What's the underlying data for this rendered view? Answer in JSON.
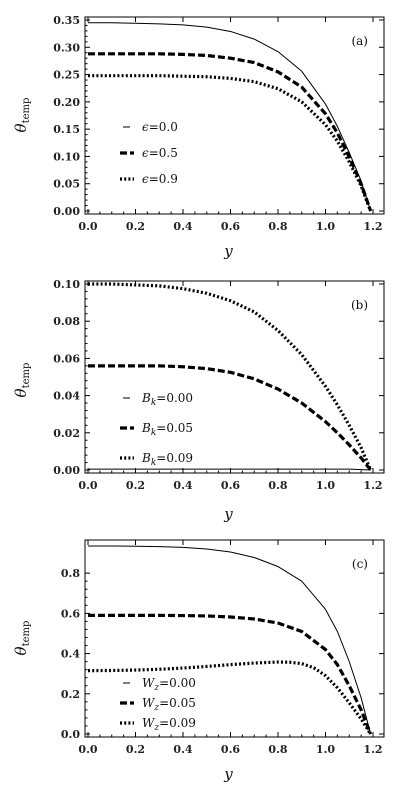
{
  "chart_data": [
    {
      "type": "line",
      "panel_label": "(a)",
      "xlabel": "y",
      "ylabel": "θtemp",
      "xlim": [
        0.0,
        1.2
      ],
      "ylim": [
        0.0,
        0.35
      ],
      "xticks": [
        "0.0",
        "0.2",
        "0.4",
        "0.6",
        "0.8",
        "1.0",
        "1.2"
      ],
      "yticks": [
        "0.00",
        "0.05",
        "0.10",
        "0.15",
        "0.20",
        "0.25",
        "0.30",
        "0.35"
      ],
      "legend_position": "left",
      "series": [
        {
          "name": "ϵ=0.0",
          "legend_var": "ϵ",
          "legend_val": "=0.0",
          "style": "solid",
          "x": [
            0,
            0.1,
            0.2,
            0.3,
            0.4,
            0.5,
            0.6,
            0.7,
            0.8,
            0.9,
            1.0,
            1.05,
            1.1,
            1.15,
            1.19
          ],
          "y": [
            0.345,
            0.345,
            0.344,
            0.343,
            0.341,
            0.337,
            0.329,
            0.315,
            0.292,
            0.256,
            0.196,
            0.155,
            0.107,
            0.055,
            0.0
          ]
        },
        {
          "name": "ϵ=0.5",
          "legend_var": "ϵ",
          "legend_val": "=0.5",
          "style": "dashed",
          "x": [
            0,
            0.1,
            0.2,
            0.3,
            0.4,
            0.5,
            0.6,
            0.7,
            0.8,
            0.9,
            1.0,
            1.05,
            1.1,
            1.15,
            1.19
          ],
          "y": [
            0.288,
            0.288,
            0.288,
            0.288,
            0.287,
            0.285,
            0.28,
            0.272,
            0.255,
            0.227,
            0.178,
            0.143,
            0.099,
            0.05,
            0.0
          ]
        },
        {
          "name": "ϵ=0.9",
          "legend_var": "ϵ",
          "legend_val": "=0.9",
          "style": "dotted",
          "x": [
            0,
            0.1,
            0.2,
            0.3,
            0.4,
            0.5,
            0.6,
            0.7,
            0.8,
            0.9,
            1.0,
            1.05,
            1.1,
            1.15,
            1.19
          ],
          "y": [
            0.248,
            0.248,
            0.248,
            0.248,
            0.247,
            0.246,
            0.243,
            0.237,
            0.224,
            0.2,
            0.158,
            0.128,
            0.09,
            0.046,
            0.0
          ]
        }
      ]
    },
    {
      "type": "line",
      "panel_label": "(b)",
      "xlabel": "y",
      "ylabel": "θtemp",
      "xlim": [
        0.0,
        1.2
      ],
      "ylim": [
        0.0,
        0.1
      ],
      "xticks": [
        "0.0",
        "0.2",
        "0.4",
        "0.6",
        "0.8",
        "1.0",
        "1.2"
      ],
      "yticks": [
        "0.00",
        "0.02",
        "0.04",
        "0.06",
        "0.08",
        "0.10"
      ],
      "legend_position": "bottom-left",
      "series": [
        {
          "name": "Bk=0.00",
          "legend_var": "B",
          "legend_sub": "k",
          "legend_val": "=0.00",
          "style": "solid",
          "x": [
            0,
            0.2,
            0.4,
            0.6,
            0.8,
            1.0,
            1.1,
            1.19
          ],
          "y": [
            0.0005,
            0.0005,
            0.0005,
            0.0005,
            0.0005,
            0.0005,
            0.0005,
            0.0
          ]
        },
        {
          "name": "Bk=0.05",
          "legend_var": "B",
          "legend_sub": "k",
          "legend_val": "=0.05",
          "style": "dashed",
          "x": [
            0,
            0.1,
            0.2,
            0.3,
            0.4,
            0.5,
            0.6,
            0.7,
            0.8,
            0.9,
            1.0,
            1.05,
            1.1,
            1.15,
            1.19
          ],
          "y": [
            0.056,
            0.056,
            0.056,
            0.056,
            0.0555,
            0.0545,
            0.0525,
            0.049,
            0.0435,
            0.036,
            0.026,
            0.02,
            0.0135,
            0.0065,
            0.0
          ]
        },
        {
          "name": "Bk=0.09",
          "legend_var": "B",
          "legend_sub": "k",
          "legend_val": "=0.09",
          "style": "dotted",
          "x": [
            0,
            0.1,
            0.2,
            0.3,
            0.4,
            0.5,
            0.6,
            0.7,
            0.8,
            0.9,
            1.0,
            1.05,
            1.1,
            1.15,
            1.19
          ],
          "y": [
            0.1,
            0.1,
            0.0995,
            0.099,
            0.0975,
            0.095,
            0.091,
            0.085,
            0.075,
            0.062,
            0.045,
            0.035,
            0.024,
            0.012,
            0.0
          ]
        }
      ]
    },
    {
      "type": "line",
      "panel_label": "(c)",
      "xlabel": "y",
      "ylabel": "θtemp",
      "xlim": [
        0.0,
        1.2
      ],
      "ylim": [
        0.0,
        0.95
      ],
      "xticks": [
        "0.0",
        "0.2",
        "0.4",
        "0.6",
        "0.8",
        "1.0",
        "1.2"
      ],
      "yticks": [
        "0.0",
        "0.2",
        "0.4",
        "0.6",
        "0.8"
      ],
      "legend_position": "bottom-left",
      "series": [
        {
          "name": "Wz=0.00",
          "legend_var": "W",
          "legend_sub": "z",
          "legend_val": "=0.00",
          "style": "solid",
          "x": [
            0,
            0.1,
            0.2,
            0.3,
            0.4,
            0.5,
            0.6,
            0.7,
            0.8,
            0.9,
            1.0,
            1.05,
            1.1,
            1.15,
            1.19
          ],
          "y": [
            0.935,
            0.935,
            0.934,
            0.932,
            0.928,
            0.92,
            0.905,
            0.878,
            0.833,
            0.76,
            0.62,
            0.51,
            0.36,
            0.18,
            0.0
          ]
        },
        {
          "name": "Wz=0.05",
          "legend_var": "W",
          "legend_sub": "z",
          "legend_val": "=0.05",
          "style": "dashed",
          "x": [
            0,
            0.1,
            0.2,
            0.3,
            0.4,
            0.5,
            0.6,
            0.7,
            0.8,
            0.9,
            1.0,
            1.05,
            1.1,
            1.15,
            1.19
          ],
          "y": [
            0.59,
            0.59,
            0.59,
            0.59,
            0.589,
            0.587,
            0.582,
            0.572,
            0.552,
            0.51,
            0.42,
            0.345,
            0.24,
            0.12,
            0.0
          ]
        },
        {
          "name": "Wz=0.09",
          "legend_var": "W",
          "legend_sub": "z",
          "legend_val": "=0.09",
          "style": "dotted",
          "x": [
            0,
            0.1,
            0.2,
            0.3,
            0.4,
            0.5,
            0.6,
            0.7,
            0.8,
            0.85,
            0.9,
            0.95,
            1.0,
            1.05,
            1.1,
            1.15,
            1.19
          ],
          "y": [
            0.315,
            0.316,
            0.318,
            0.322,
            0.328,
            0.336,
            0.345,
            0.353,
            0.358,
            0.357,
            0.35,
            0.33,
            0.29,
            0.23,
            0.155,
            0.075,
            0.0
          ]
        }
      ]
    }
  ]
}
